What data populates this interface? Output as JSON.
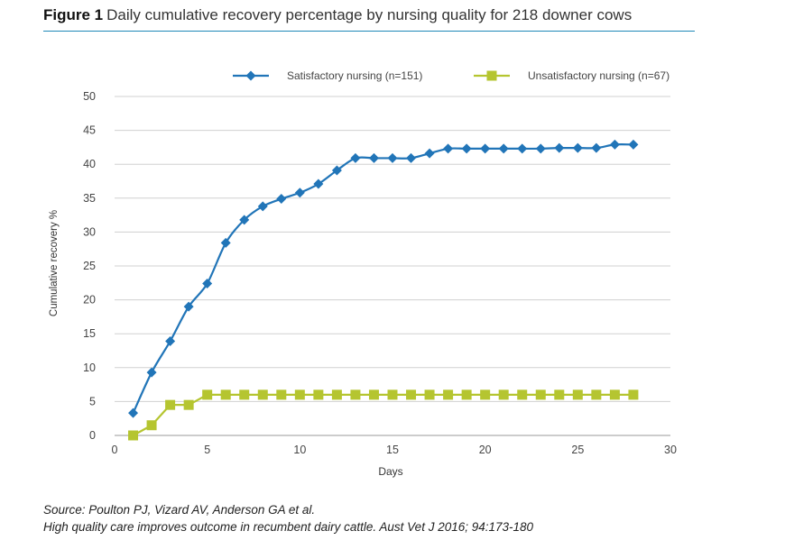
{
  "figure": {
    "label": "Figure 1",
    "title": "Daily cumulative recovery percentage by nursing quality for 218 downer cows"
  },
  "source": {
    "line1": "Source: Poulton PJ, Vizard AV, Anderson GA et al.",
    "line2": "High quality care improves outcome in recumbent dairy cattle. Aust Vet J 2016; 94:173-180"
  },
  "colors": {
    "satisfactory": "#2175b8",
    "unsatisfactory": "#b5c530",
    "grid": "#d0d0d0",
    "accent": "#1f88b8"
  },
  "chart_data": {
    "type": "line",
    "xlabel": "Days",
    "ylabel": "Cumulative recovery %",
    "xlim": [
      0,
      30
    ],
    "ylim": [
      0,
      50
    ],
    "xticks": [
      0,
      5,
      10,
      15,
      20,
      25,
      30
    ],
    "yticks": [
      0,
      5,
      10,
      15,
      20,
      25,
      30,
      35,
      40,
      45,
      50
    ],
    "grid": "horizontal",
    "legend_position": "top",
    "series": [
      {
        "name": "Satisfactory nursing (n=151)",
        "marker": "diamond",
        "x": [
          1,
          2,
          3,
          4,
          5,
          6,
          7,
          8,
          9,
          10,
          11,
          12,
          13,
          14,
          15,
          16,
          17,
          18,
          19,
          20,
          21,
          22,
          23,
          24,
          25,
          26,
          27,
          28
        ],
        "y": [
          3.3,
          9.3,
          13.9,
          19.0,
          22.4,
          28.4,
          31.8,
          33.8,
          34.9,
          35.8,
          37.1,
          39.1,
          40.9,
          40.9,
          40.9,
          40.9,
          41.6,
          42.3,
          42.3,
          42.3,
          42.3,
          42.3,
          42.3,
          42.4,
          42.4,
          42.4,
          42.9,
          42.9
        ]
      },
      {
        "name": "Unsatisfactory nursing (n=67)",
        "marker": "square",
        "x": [
          1,
          2,
          3,
          4,
          5,
          6,
          7,
          8,
          9,
          10,
          11,
          12,
          13,
          14,
          15,
          16,
          17,
          18,
          19,
          20,
          21,
          22,
          23,
          24,
          25,
          26,
          27,
          28
        ],
        "y": [
          0,
          1.5,
          4.5,
          4.5,
          6.0,
          6.0,
          6.0,
          6.0,
          6.0,
          6.0,
          6.0,
          6.0,
          6.0,
          6.0,
          6.0,
          6.0,
          6.0,
          6.0,
          6.0,
          6.0,
          6.0,
          6.0,
          6.0,
          6.0,
          6.0,
          6.0,
          6.0,
          6.0
        ]
      }
    ]
  }
}
